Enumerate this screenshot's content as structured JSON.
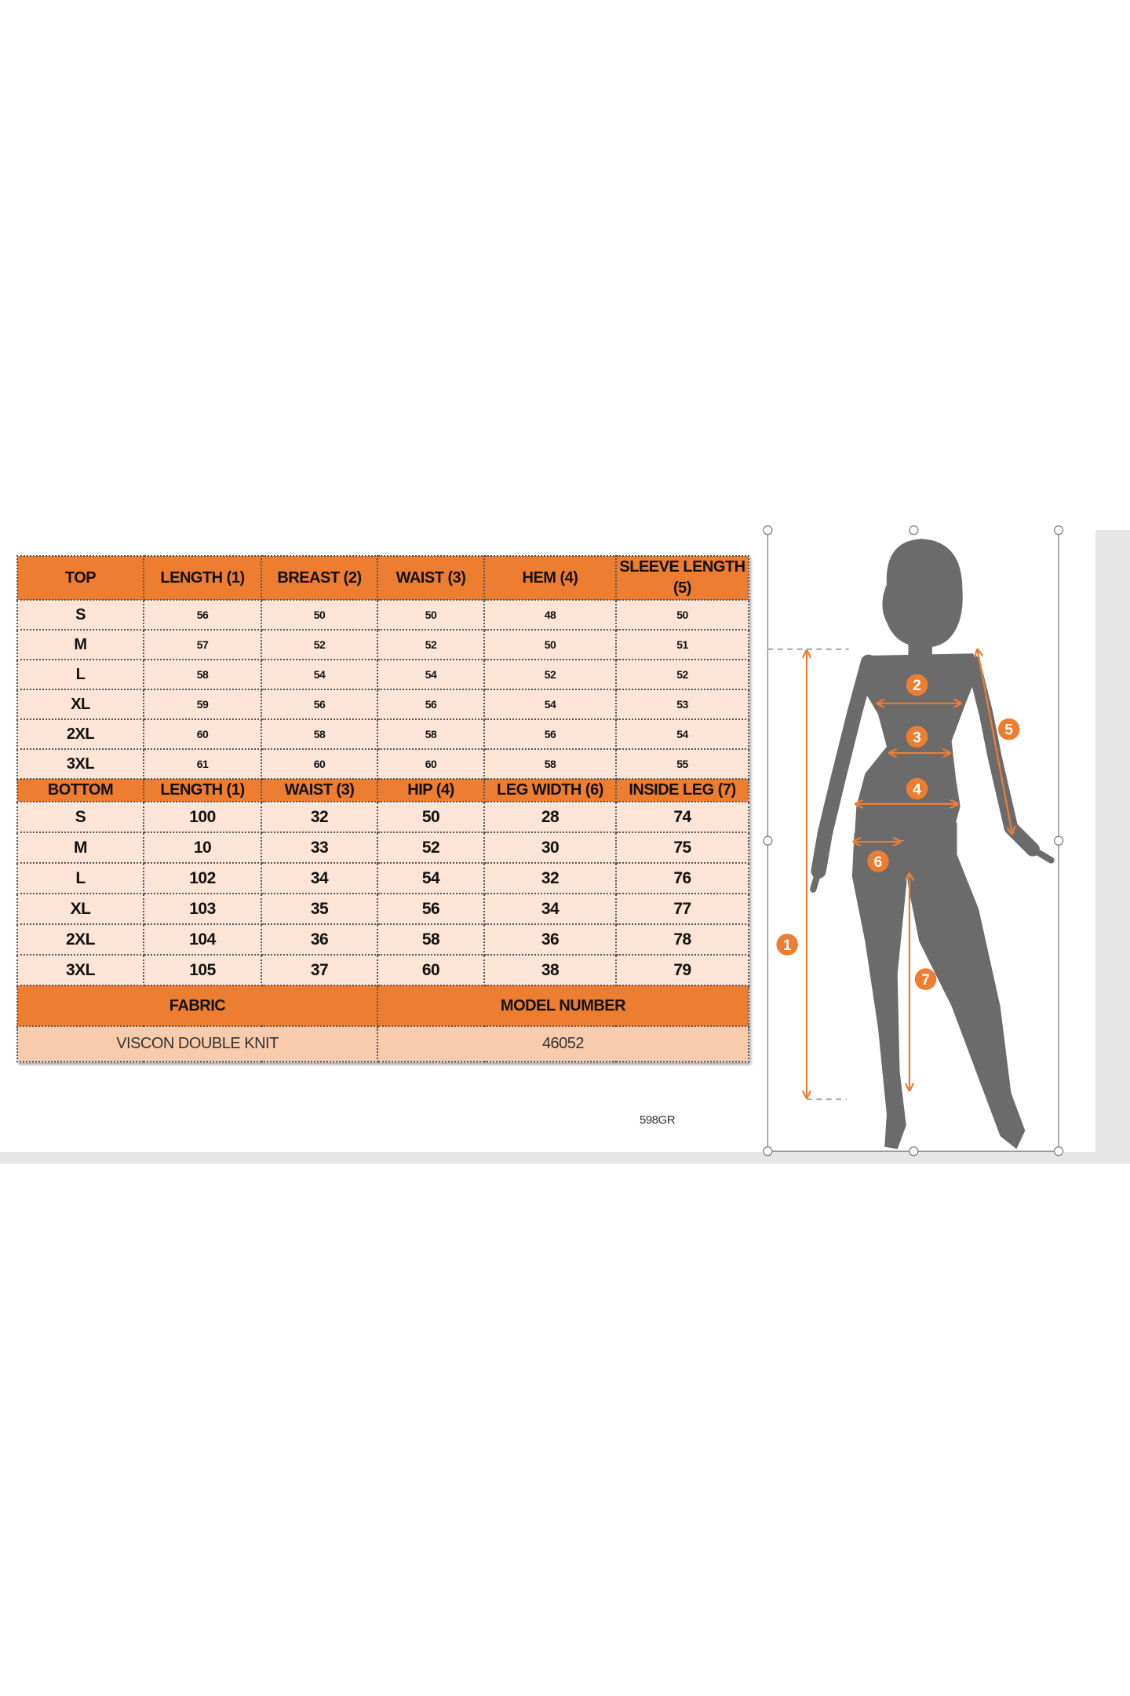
{
  "top_table": {
    "headers": [
      "TOP",
      "LENGTH (1)",
      "BREAST (2)",
      "WAIST (3)",
      "HEM (4)",
      "SLEEVE LENGTH (5)"
    ],
    "rows": [
      [
        "S",
        "56",
        "50",
        "50",
        "48",
        "50"
      ],
      [
        "M",
        "57",
        "52",
        "52",
        "50",
        "51"
      ],
      [
        "L",
        "58",
        "54",
        "54",
        "52",
        "52"
      ],
      [
        "XL",
        "59",
        "56",
        "56",
        "54",
        "53"
      ],
      [
        "2XL",
        "60",
        "58",
        "58",
        "56",
        "54"
      ],
      [
        "3XL",
        "61",
        "60",
        "60",
        "58",
        "55"
      ]
    ]
  },
  "bottom_table": {
    "headers": [
      "BOTTOM",
      "LENGTH (1)",
      "WAIST (3)",
      "HIP (4)",
      "LEG WIDTH (6)",
      "INSIDE LEG (7)"
    ],
    "rows": [
      [
        "S",
        "100",
        "32",
        "50",
        "28",
        "74"
      ],
      [
        "M",
        "10",
        "33",
        "52",
        "30",
        "75"
      ],
      [
        "L",
        "102",
        "34",
        "54",
        "32",
        "76"
      ],
      [
        "XL",
        "103",
        "35",
        "56",
        "34",
        "77"
      ],
      [
        "2XL",
        "104",
        "36",
        "58",
        "36",
        "78"
      ],
      [
        "3XL",
        "105",
        "37",
        "60",
        "38",
        "79"
      ]
    ]
  },
  "fabric": {
    "label": "FABRIC",
    "value": "VISCON DOUBLE KNIT"
  },
  "model_number": {
    "label": "MODEL NUMBER",
    "value": "46052"
  },
  "code": "598GR",
  "diagram": {
    "markers": [
      "1",
      "2",
      "3",
      "4",
      "5",
      "6",
      "7"
    ],
    "accent_color": "#ED7D31",
    "silhouette_color": "#6b6b6b"
  },
  "colors": {
    "header": "#ED7D31",
    "row": "#FCE4D6",
    "fabric_value_row": "#F8CBAD"
  }
}
